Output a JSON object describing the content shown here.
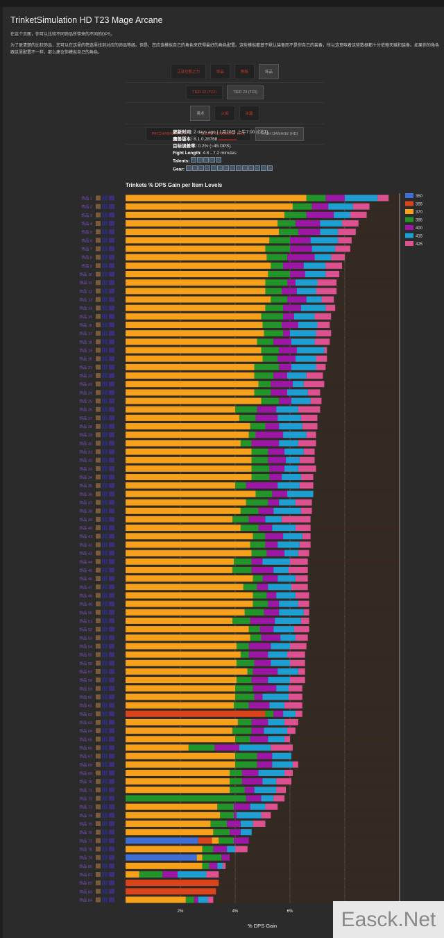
{
  "page": {
    "title": "TrinketSimulation HD T23 Mage Arcane",
    "intro": "在这个页面，你可以比较不同饰品所带来的不同的DPS。",
    "description": "为了更清楚的比较饰品，您可以在这里的筛选里找到对应的饰品等级。但是，您应该模拟自己的角色来获得最好的角色配置。这些模拟都基于默认装备而不是你自己的装备，所以这意味着这些数据都十分依赖天赋和装备。如果你的角色跟这里配置不一样，那么建议你模拟自己的角色。"
  },
  "filters": {
    "rows": [
      [
        {
          "label": "艾泽拉斯之力",
          "selected": false
        },
        {
          "label": "饰品",
          "selected": false
        },
        {
          "label": "种族",
          "selected": false
        },
        {
          "label": "饰品",
          "selected": true
        }
      ],
      [
        {
          "label": "TIER 22 (T22)",
          "selected": false
        },
        {
          "label": "TIER 23 (T23)",
          "selected": true
        }
      ],
      [
        {
          "label": "奥术",
          "selected": true
        },
        {
          "label": "火焰",
          "selected": false
        },
        {
          "label": "冰霜",
          "selected": false
        }
      ],
      [
        {
          "label": "PATCHWERK (PW)",
          "selected": false
        },
        {
          "label": "LIGHT MOVEMENT (LM)",
          "selected": false
        },
        {
          "label": "HIGH DAMAGE (HD)",
          "selected": true
        }
      ]
    ]
  },
  "meta": {
    "updated_label": "更新时间:",
    "updated_value": "2 days ago | 1月20日 上午7:00 (CET)",
    "version_label": "魔兽版本:",
    "version_value": "8.1.0.28768",
    "error_label": "目标误差率:",
    "error_value": "0.2% (~45 DPS)",
    "fight_label": "Fight Length:",
    "fight_value": "4.8 - 7.2 minutes",
    "talents_label": "Talents:",
    "gear_label": "Gear:"
  },
  "chart_data": {
    "type": "bar",
    "title": "Trinkets % DPS Gain per Item Levels",
    "xlabel": "% DPS Gain",
    "ylabel": "",
    "xlim": [
      0,
      10
    ],
    "xticks": [
      "2%",
      "4%",
      "6%"
    ],
    "legend_position": "right",
    "stacked": true,
    "legend": [
      {
        "name": "350",
        "color": "#3f6fd4"
      },
      {
        "name": "355",
        "color": "#d9441c"
      },
      {
        "name": "370",
        "color": "#f7a01a"
      },
      {
        "name": "385",
        "color": "#22952a"
      },
      {
        "name": "400",
        "color": "#9c17a6"
      },
      {
        "name": "415",
        "color": "#1e9fd4"
      },
      {
        "name": "425",
        "color": "#dd5190"
      }
    ],
    "series_note": "each row lists cumulative % DPS gain reached at each item level segment in order [350,355,370,385,400,415,425]; null = not available",
    "rows": [
      {
        "label": "饰品 1",
        "values": [
          null,
          null,
          6.6,
          7.3,
          8.0,
          9.2,
          9.6
        ]
      },
      {
        "label": "饰品 2",
        "values": [
          null,
          null,
          6.1,
          6.8,
          7.4,
          8.3,
          8.9
        ]
      },
      {
        "label": "饰品 3",
        "values": [
          null,
          null,
          5.8,
          6.6,
          7.6,
          8.2,
          8.8
        ]
      },
      {
        "label": "饰品 4",
        "values": [
          null,
          null,
          5.55,
          6.2,
          7.1,
          7.9,
          8.5
        ]
      },
      {
        "label": "饰品 5",
        "values": [
          null,
          null,
          5.6,
          6.3,
          7.1,
          7.75,
          8.4
        ]
      },
      {
        "label": "饰品 6",
        "values": [
          null,
          null,
          5.25,
          6.0,
          6.75,
          7.75,
          8.25
        ]
      },
      {
        "label": "饰品 7",
        "values": [
          null,
          null,
          5.1,
          6.0,
          6.8,
          7.65,
          8.2
        ]
      },
      {
        "label": "饰品 8",
        "values": [
          null,
          null,
          5.15,
          5.9,
          6.9,
          7.5,
          8.0
        ]
      },
      {
        "label": "饰品 9",
        "values": [
          null,
          null,
          5.3,
          5.75,
          6.5,
          7.3,
          7.9
        ]
      },
      {
        "label": "饰品 10",
        "values": [
          null,
          null,
          5.2,
          6.0,
          6.55,
          7.3,
          7.8
        ]
      },
      {
        "label": "饰品 11",
        "values": [
          null,
          null,
          5.1,
          5.9,
          6.2,
          7.0,
          7.7
        ]
      },
      {
        "label": "饰品 12",
        "values": [
          null,
          null,
          5.1,
          5.7,
          6.25,
          6.95,
          7.7
        ]
      },
      {
        "label": "饰品 13",
        "values": [
          null,
          null,
          5.3,
          5.9,
          6.6,
          7.15,
          7.6
        ]
      },
      {
        "label": "饰品 14",
        "values": [
          null,
          null,
          5.1,
          5.75,
          6.4,
          7.3,
          7.65
        ]
      },
      {
        "label": "饰品 15",
        "values": [
          null,
          null,
          4.95,
          5.75,
          6.15,
          6.9,
          7.5
        ]
      },
      {
        "label": "饰品 16",
        "values": [
          null,
          null,
          5.0,
          5.7,
          6.3,
          7.0,
          7.45
        ]
      },
      {
        "label": "饰品 17",
        "values": [
          null,
          null,
          5.05,
          5.75,
          6.0,
          6.95,
          7.5
        ]
      },
      {
        "label": "饰品 18",
        "values": [
          null,
          null,
          4.8,
          5.4,
          6.05,
          6.9,
          7.45
        ]
      },
      {
        "label": "饰品 19",
        "values": [
          null,
          null,
          4.95,
          5.6,
          6.25,
          7.25,
          7.35
        ]
      },
      {
        "label": "饰品 20",
        "values": [
          null,
          null,
          5.0,
          5.55,
          6.2,
          6.95,
          7.35
        ]
      },
      {
        "label": "饰品 21",
        "values": [
          null,
          null,
          4.7,
          5.6,
          6.05,
          6.95,
          7.3
        ]
      },
      {
        "label": "饰品 22",
        "values": [
          null,
          null,
          4.7,
          5.4,
          5.9,
          6.6,
          7.2
        ]
      },
      {
        "label": "饰品 23",
        "values": [
          null,
          null,
          4.85,
          5.3,
          6.1,
          6.5,
          7.25
        ]
      },
      {
        "label": "饰品 24",
        "values": [
          null,
          null,
          4.7,
          5.3,
          5.9,
          6.65,
          7.1
        ]
      },
      {
        "label": "饰品 25",
        "values": [
          null,
          null,
          4.95,
          5.6,
          6.05,
          6.75,
          7.15
        ]
      },
      {
        "label": "饰品 26",
        "values": [
          null,
          null,
          4.0,
          4.8,
          5.5,
          6.3,
          7.1
        ]
      },
      {
        "label": "饰品 27",
        "values": [
          null,
          null,
          4.15,
          4.75,
          5.55,
          6.4,
          7.0
        ]
      },
      {
        "label": "饰品 28",
        "values": [
          null,
          null,
          4.55,
          5.1,
          5.6,
          6.45,
          7.0
        ]
      },
      {
        "label": "饰品 29",
        "values": [
          null,
          null,
          4.5,
          4.75,
          5.75,
          6.6,
          6.95
        ]
      },
      {
        "label": "饰品 30",
        "values": [
          null,
          null,
          4.2,
          4.6,
          5.6,
          6.3,
          6.95
        ]
      },
      {
        "label": "饰品 31",
        "values": [
          null,
          null,
          4.6,
          5.2,
          5.8,
          6.5,
          6.9
        ]
      },
      {
        "label": "饰品 32",
        "values": [
          null,
          null,
          4.6,
          5.2,
          5.85,
          6.35,
          6.9
        ]
      },
      {
        "label": "饰品 33",
        "values": [
          null,
          null,
          4.6,
          5.25,
          5.8,
          6.3,
          6.95
        ]
      },
      {
        "label": "饰品 34",
        "values": [
          null,
          null,
          4.6,
          5.25,
          5.7,
          6.4,
          6.85
        ]
      },
      {
        "label": "饰品 35",
        "values": [
          null,
          null,
          4.0,
          4.4,
          5.55,
          6.35,
          6.85
        ]
      },
      {
        "label": "饰品 36",
        "values": [
          null,
          null,
          4.75,
          5.35,
          5.9,
          6.85,
          null
        ]
      },
      {
        "label": "饰品 37",
        "values": [
          null,
          null,
          4.4,
          5.2,
          5.6,
          6.2,
          6.8
        ]
      },
      {
        "label": "饰品 38",
        "values": [
          null,
          null,
          4.2,
          4.85,
          5.4,
          6.4,
          6.8
        ]
      },
      {
        "label": "饰品 39",
        "values": [
          null,
          null,
          3.9,
          4.5,
          5.1,
          5.7,
          6.75
        ]
      },
      {
        "label": "饰品 40",
        "values": [
          null,
          null,
          4.2,
          4.85,
          5.35,
          6.2,
          6.75
        ]
      },
      {
        "label": "饰品 41",
        "values": [
          null,
          null,
          4.65,
          5.1,
          5.75,
          6.45,
          6.75
        ]
      },
      {
        "label": "饰品 42",
        "values": [
          null,
          null,
          4.55,
          5.1,
          5.55,
          6.35,
          6.75
        ]
      },
      {
        "label": "饰品 43",
        "values": [
          null,
          null,
          4.6,
          5.15,
          5.8,
          6.3,
          6.7
        ]
      },
      {
        "label": "饰品 44",
        "values": [
          null,
          null,
          3.95,
          4.6,
          5.0,
          6.0,
          6.65
        ]
      },
      {
        "label": "饰品 45",
        "values": [
          null,
          null,
          3.9,
          4.6,
          5.4,
          5.95,
          6.65
        ]
      },
      {
        "label": "饰品 46",
        "values": [
          null,
          null,
          4.65,
          5.0,
          5.55,
          6.2,
          6.65
        ]
      },
      {
        "label": "饰品 47",
        "values": [
          null,
          null,
          4.3,
          4.8,
          5.2,
          6.05,
          6.65
        ]
      },
      {
        "label": "饰品 48",
        "values": [
          null,
          null,
          4.65,
          5.15,
          5.5,
          6.2,
          6.7
        ]
      },
      {
        "label": "饰品 49",
        "values": [
          null,
          null,
          4.65,
          5.2,
          5.6,
          6.3,
          6.7
        ]
      },
      {
        "label": "饰品 50",
        "values": [
          null,
          null,
          4.35,
          5.05,
          5.6,
          6.5,
          6.7
        ]
      },
      {
        "label": "饰品 51",
        "values": [
          null,
          null,
          3.9,
          4.55,
          5.45,
          6.4,
          6.7
        ]
      },
      {
        "label": "饰品 52",
        "values": [
          null,
          null,
          4.5,
          4.9,
          5.4,
          6.15,
          6.7
        ]
      },
      {
        "label": "饰品 53",
        "values": [
          null,
          null,
          4.55,
          4.95,
          5.65,
          6.2,
          6.65
        ]
      },
      {
        "label": "饰品 54",
        "values": [
          null,
          null,
          4.05,
          4.5,
          5.3,
          6.0,
          6.6
        ]
      },
      {
        "label": "饰品 55",
        "values": [
          null,
          null,
          4.2,
          4.5,
          5.2,
          5.9,
          6.55
        ]
      },
      {
        "label": "饰品 56",
        "values": [
          null,
          null,
          4.05,
          4.7,
          5.3,
          6.0,
          6.55
        ]
      },
      {
        "label": "饰品 57",
        "values": [
          null,
          null,
          4.45,
          4.65,
          5.55,
          6.3,
          6.55
        ]
      },
      {
        "label": "饰品 58",
        "values": [
          null,
          null,
          4.05,
          4.6,
          5.2,
          6.0,
          6.55
        ]
      },
      {
        "label": "饰品 59",
        "values": [
          null,
          null,
          4.0,
          4.65,
          5.5,
          5.95,
          6.45
        ]
      },
      {
        "label": "饰品 60",
        "values": [
          null,
          null,
          4.0,
          4.7,
          5.0,
          5.95,
          6.45
        ]
      },
      {
        "label": "饰品 61",
        "values": [
          null,
          null,
          3.95,
          4.5,
          5.25,
          5.8,
          6.45
        ]
      },
      {
        "label": "饰品 62",
        "values": [
          null,
          5.1,
          null,
          5.4,
          5.75,
          6.2,
          6.45
        ]
      },
      {
        "label": "饰品 63",
        "values": [
          null,
          null,
          4.1,
          4.6,
          5.2,
          5.8,
          6.3
        ]
      },
      {
        "label": "饰品 64",
        "values": [
          null,
          null,
          3.9,
          4.6,
          5.05,
          5.9,
          6.2
        ]
      },
      {
        "label": "饰品 65",
        "values": [
          null,
          null,
          4.0,
          4.55,
          5.2,
          5.8,
          6.0
        ]
      },
      {
        "label": "饰品 66",
        "values": [
          null,
          null,
          2.3,
          3.25,
          4.15,
          5.3,
          6.1
        ]
      },
      {
        "label": "饰品 67",
        "values": [
          null,
          null,
          4.0,
          4.8,
          5.35,
          6.05,
          null
        ]
      },
      {
        "label": "饰品 68",
        "values": [
          null,
          null,
          4.0,
          4.8,
          5.35,
          6.1,
          6.3
        ]
      },
      {
        "label": "饰品 69",
        "values": [
          null,
          null,
          3.8,
          4.25,
          4.85,
          5.8,
          6.1
        ]
      },
      {
        "label": "饰品 70",
        "values": [
          null,
          null,
          3.8,
          4.25,
          5.0,
          5.5,
          6.05
        ]
      },
      {
        "label": "饰品 71",
        "values": [
          null,
          null,
          3.8,
          4.35,
          4.7,
          5.5,
          5.85
        ]
      },
      {
        "label": "饰品 72",
        "values": [
          null,
          null,
          null,
          4.4,
          4.95,
          5.4,
          5.8
        ]
      },
      {
        "label": "饰品 73",
        "values": [
          null,
          null,
          3.35,
          3.95,
          4.55,
          5.1,
          5.55
        ]
      },
      {
        "label": "饰品 74",
        "values": [
          null,
          null,
          3.45,
          3.95,
          4.05,
          4.95,
          5.3
        ]
      },
      {
        "label": "饰品 75",
        "values": [
          null,
          null,
          3.1,
          3.7,
          4.2,
          4.65,
          5.1
        ]
      },
      {
        "label": "饰品 76",
        "values": [
          null,
          null,
          3.2,
          3.8,
          4.2,
          4.6,
          null
        ]
      },
      {
        "label": "饰品 77",
        "values": [
          2.65,
          3.15,
          3.4,
          3.95,
          4.5,
          null,
          null
        ]
      },
      {
        "label": "饰品 78",
        "values": [
          null,
          null,
          2.8,
          3.2,
          3.7,
          4.0,
          4.45
        ]
      },
      {
        "label": "饰品 79",
        "values": [
          2.6,
          null,
          2.8,
          3.5,
          3.8,
          null,
          null
        ]
      },
      {
        "label": "饰品 80",
        "values": [
          null,
          null,
          2.8,
          3.05,
          3.35,
          3.55,
          3.65
        ]
      },
      {
        "label": "饰品 81",
        "values": [
          null,
          null,
          0.5,
          1.35,
          1.9,
          2.95,
          3.4
        ]
      },
      {
        "label": "饰品 82",
        "values": [
          null,
          3.4,
          null,
          null,
          null,
          null,
          null
        ]
      },
      {
        "label": "饰品 83",
        "values": [
          null,
          3.3,
          null,
          null,
          null,
          null,
          null
        ]
      },
      {
        "label": "饰品 84",
        "values": [
          null,
          null,
          2.2,
          2.5,
          2.65,
          3.0,
          3.2
        ]
      }
    ]
  },
  "watermark": "Easck.Net"
}
